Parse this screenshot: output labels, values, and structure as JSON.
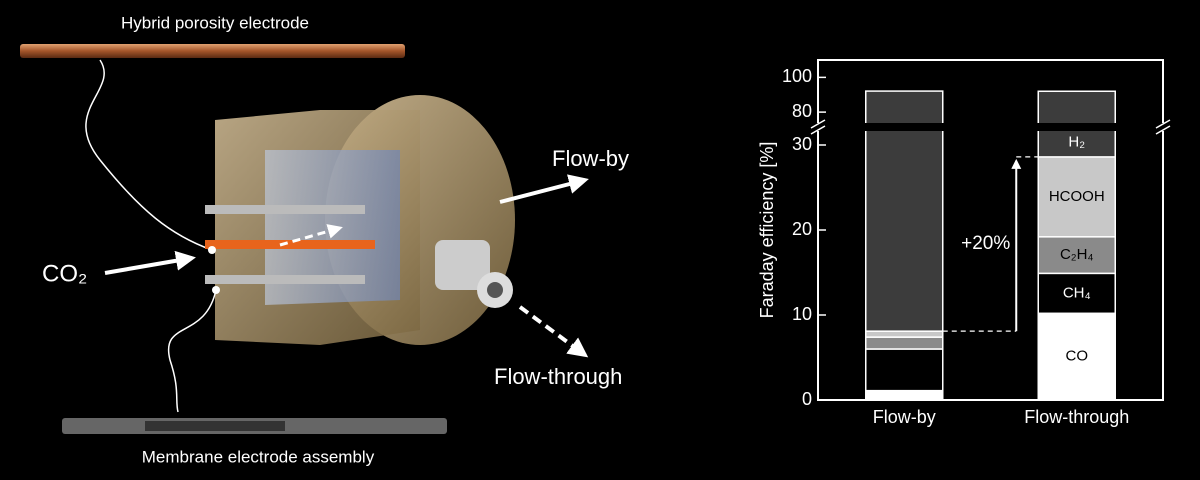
{
  "illustration": {
    "labels": {
      "top_electrode": "Hybrid porosity electrode",
      "flow_by": "Flow-by",
      "inlet": "CO₂",
      "flow_through": "Flow-through",
      "bottom_electrode": "Membrane electrode assembly"
    }
  },
  "chart_data": {
    "type": "bar",
    "stacked": true,
    "ylabel": "Faraday efficiency [%]",
    "categories": [
      "Flow-by",
      "Flow-through"
    ],
    "series": [
      {
        "name": "CO",
        "color": "#ffffff",
        "values": [
          1.1,
          10.2
        ]
      },
      {
        "name": "CH₄",
        "color": "#000000",
        "values": [
          4.9,
          4.7
        ]
      },
      {
        "name": "C₂H₄",
        "color": "#8a8a8a",
        "values": [
          1.4,
          4.3
        ]
      },
      {
        "name": "HCOOH",
        "color": "#c8c8c8",
        "values": [
          0.7,
          9.4
        ]
      },
      {
        "name": "H₂",
        "color": "#3c3c3c",
        "values": [
          84,
          63.4
        ]
      }
    ],
    "ylim": [
      0,
      110
    ],
    "axis_break": [
      32,
      72
    ],
    "yticks": [
      0,
      10,
      20,
      30,
      80,
      100
    ],
    "annotation": "+20%"
  }
}
